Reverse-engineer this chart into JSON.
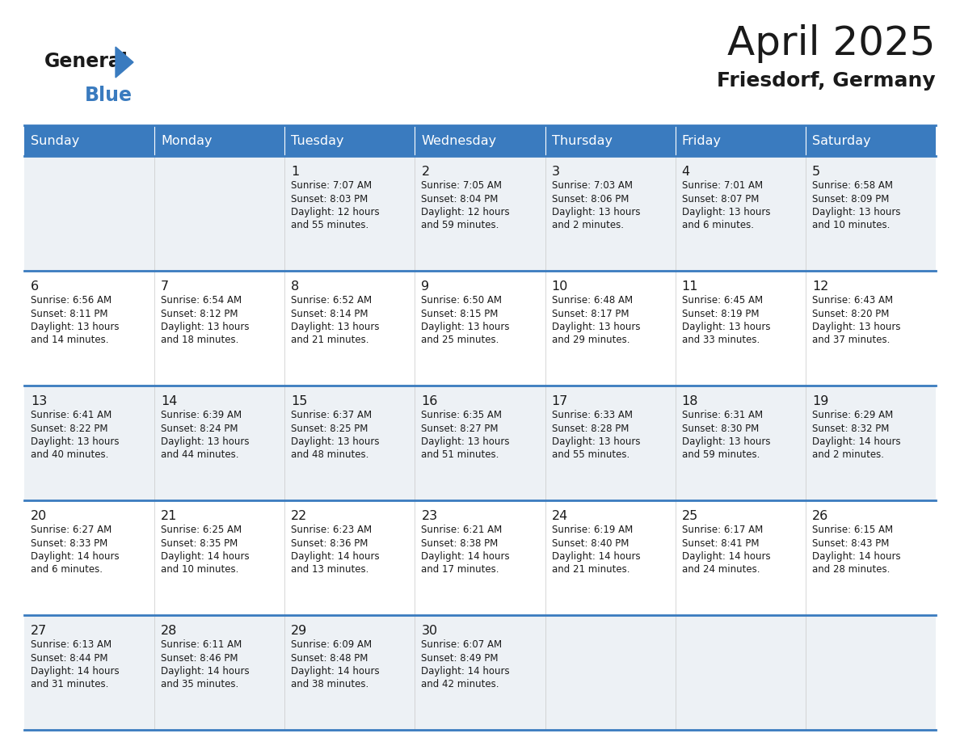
{
  "title": "April 2025",
  "subtitle": "Friesdorf, Germany",
  "header_bg_color": "#3a7bbf",
  "header_text_color": "#ffffff",
  "cell_bg_color_light": "#edf1f5",
  "cell_bg_color_white": "#ffffff",
  "row_line_color": "#3a7bbf",
  "text_color": "#1a1a1a",
  "days_of_week": [
    "Sunday",
    "Monday",
    "Tuesday",
    "Wednesday",
    "Thursday",
    "Friday",
    "Saturday"
  ],
  "weeks": [
    [
      {
        "day": "",
        "lines": []
      },
      {
        "day": "",
        "lines": []
      },
      {
        "day": "1",
        "lines": [
          "Sunrise: 7:07 AM",
          "Sunset: 8:03 PM",
          "Daylight: 12 hours",
          "and 55 minutes."
        ]
      },
      {
        "day": "2",
        "lines": [
          "Sunrise: 7:05 AM",
          "Sunset: 8:04 PM",
          "Daylight: 12 hours",
          "and 59 minutes."
        ]
      },
      {
        "day": "3",
        "lines": [
          "Sunrise: 7:03 AM",
          "Sunset: 8:06 PM",
          "Daylight: 13 hours",
          "and 2 minutes."
        ]
      },
      {
        "day": "4",
        "lines": [
          "Sunrise: 7:01 AM",
          "Sunset: 8:07 PM",
          "Daylight: 13 hours",
          "and 6 minutes."
        ]
      },
      {
        "day": "5",
        "lines": [
          "Sunrise: 6:58 AM",
          "Sunset: 8:09 PM",
          "Daylight: 13 hours",
          "and 10 minutes."
        ]
      }
    ],
    [
      {
        "day": "6",
        "lines": [
          "Sunrise: 6:56 AM",
          "Sunset: 8:11 PM",
          "Daylight: 13 hours",
          "and 14 minutes."
        ]
      },
      {
        "day": "7",
        "lines": [
          "Sunrise: 6:54 AM",
          "Sunset: 8:12 PM",
          "Daylight: 13 hours",
          "and 18 minutes."
        ]
      },
      {
        "day": "8",
        "lines": [
          "Sunrise: 6:52 AM",
          "Sunset: 8:14 PM",
          "Daylight: 13 hours",
          "and 21 minutes."
        ]
      },
      {
        "day": "9",
        "lines": [
          "Sunrise: 6:50 AM",
          "Sunset: 8:15 PM",
          "Daylight: 13 hours",
          "and 25 minutes."
        ]
      },
      {
        "day": "10",
        "lines": [
          "Sunrise: 6:48 AM",
          "Sunset: 8:17 PM",
          "Daylight: 13 hours",
          "and 29 minutes."
        ]
      },
      {
        "day": "11",
        "lines": [
          "Sunrise: 6:45 AM",
          "Sunset: 8:19 PM",
          "Daylight: 13 hours",
          "and 33 minutes."
        ]
      },
      {
        "day": "12",
        "lines": [
          "Sunrise: 6:43 AM",
          "Sunset: 8:20 PM",
          "Daylight: 13 hours",
          "and 37 minutes."
        ]
      }
    ],
    [
      {
        "day": "13",
        "lines": [
          "Sunrise: 6:41 AM",
          "Sunset: 8:22 PM",
          "Daylight: 13 hours",
          "and 40 minutes."
        ]
      },
      {
        "day": "14",
        "lines": [
          "Sunrise: 6:39 AM",
          "Sunset: 8:24 PM",
          "Daylight: 13 hours",
          "and 44 minutes."
        ]
      },
      {
        "day": "15",
        "lines": [
          "Sunrise: 6:37 AM",
          "Sunset: 8:25 PM",
          "Daylight: 13 hours",
          "and 48 minutes."
        ]
      },
      {
        "day": "16",
        "lines": [
          "Sunrise: 6:35 AM",
          "Sunset: 8:27 PM",
          "Daylight: 13 hours",
          "and 51 minutes."
        ]
      },
      {
        "day": "17",
        "lines": [
          "Sunrise: 6:33 AM",
          "Sunset: 8:28 PM",
          "Daylight: 13 hours",
          "and 55 minutes."
        ]
      },
      {
        "day": "18",
        "lines": [
          "Sunrise: 6:31 AM",
          "Sunset: 8:30 PM",
          "Daylight: 13 hours",
          "and 59 minutes."
        ]
      },
      {
        "day": "19",
        "lines": [
          "Sunrise: 6:29 AM",
          "Sunset: 8:32 PM",
          "Daylight: 14 hours",
          "and 2 minutes."
        ]
      }
    ],
    [
      {
        "day": "20",
        "lines": [
          "Sunrise: 6:27 AM",
          "Sunset: 8:33 PM",
          "Daylight: 14 hours",
          "and 6 minutes."
        ]
      },
      {
        "day": "21",
        "lines": [
          "Sunrise: 6:25 AM",
          "Sunset: 8:35 PM",
          "Daylight: 14 hours",
          "and 10 minutes."
        ]
      },
      {
        "day": "22",
        "lines": [
          "Sunrise: 6:23 AM",
          "Sunset: 8:36 PM",
          "Daylight: 14 hours",
          "and 13 minutes."
        ]
      },
      {
        "day": "23",
        "lines": [
          "Sunrise: 6:21 AM",
          "Sunset: 8:38 PM",
          "Daylight: 14 hours",
          "and 17 minutes."
        ]
      },
      {
        "day": "24",
        "lines": [
          "Sunrise: 6:19 AM",
          "Sunset: 8:40 PM",
          "Daylight: 14 hours",
          "and 21 minutes."
        ]
      },
      {
        "day": "25",
        "lines": [
          "Sunrise: 6:17 AM",
          "Sunset: 8:41 PM",
          "Daylight: 14 hours",
          "and 24 minutes."
        ]
      },
      {
        "day": "26",
        "lines": [
          "Sunrise: 6:15 AM",
          "Sunset: 8:43 PM",
          "Daylight: 14 hours",
          "and 28 minutes."
        ]
      }
    ],
    [
      {
        "day": "27",
        "lines": [
          "Sunrise: 6:13 AM",
          "Sunset: 8:44 PM",
          "Daylight: 14 hours",
          "and 31 minutes."
        ]
      },
      {
        "day": "28",
        "lines": [
          "Sunrise: 6:11 AM",
          "Sunset: 8:46 PM",
          "Daylight: 14 hours",
          "and 35 minutes."
        ]
      },
      {
        "day": "29",
        "lines": [
          "Sunrise: 6:09 AM",
          "Sunset: 8:48 PM",
          "Daylight: 14 hours",
          "and 38 minutes."
        ]
      },
      {
        "day": "30",
        "lines": [
          "Sunrise: 6:07 AM",
          "Sunset: 8:49 PM",
          "Daylight: 14 hours",
          "and 42 minutes."
        ]
      },
      {
        "day": "",
        "lines": []
      },
      {
        "day": "",
        "lines": []
      },
      {
        "day": "",
        "lines": []
      }
    ]
  ]
}
